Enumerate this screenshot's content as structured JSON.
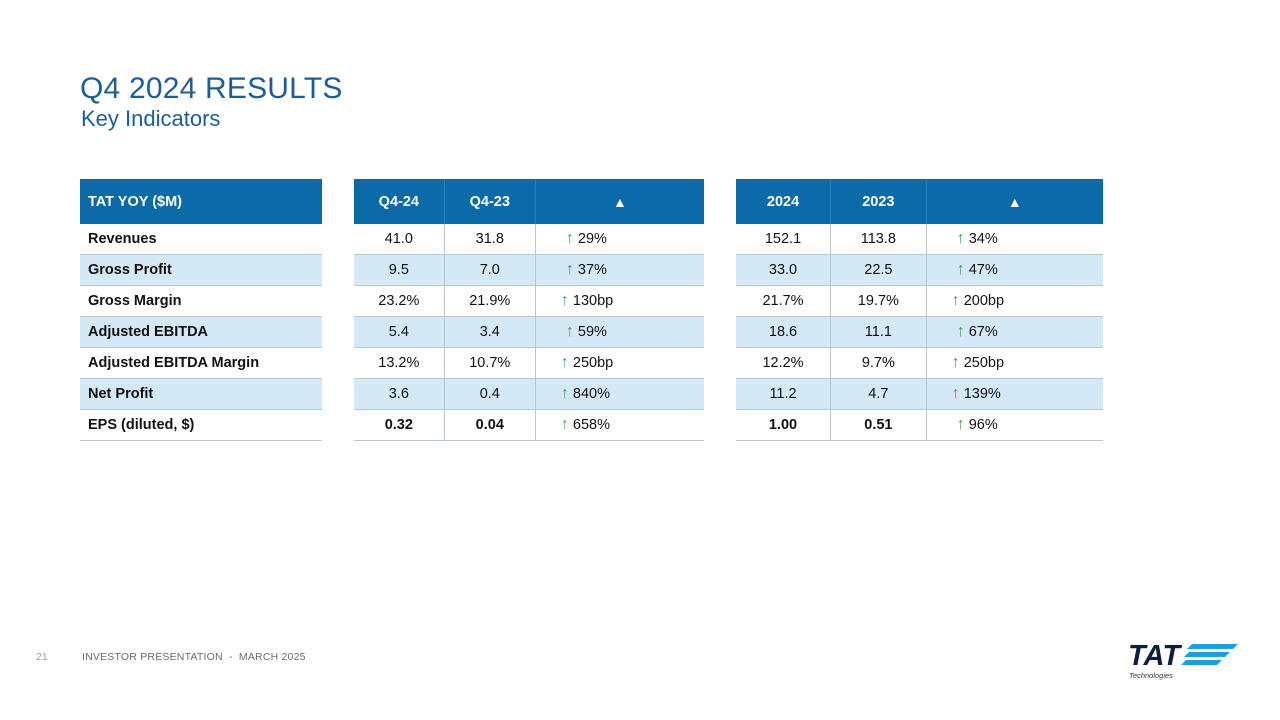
{
  "header": {
    "title": "Q4 2024 RESULTS",
    "subtitle": "Key Indicators"
  },
  "table": {
    "label_header": "TAT YOY ($M)",
    "quarter_headers": [
      "Q4-24",
      "Q4-23",
      "▲"
    ],
    "annual_headers": [
      "2024",
      "2023",
      "▲"
    ],
    "rows": [
      {
        "label": "Revenues",
        "q4_24": "41.0",
        "q4_23": "31.8",
        "q_change": "29%",
        "y2024": "152.1",
        "y2023": "113.8",
        "y_change": "34%"
      },
      {
        "label": "Gross Profit",
        "q4_24": "9.5",
        "q4_23": "7.0",
        "q_change": "37%",
        "y2024": "33.0",
        "y2023": "22.5",
        "y_change": "47%"
      },
      {
        "label": "Gross Margin",
        "q4_24": "23.2%",
        "q4_23": "21.9%",
        "q_change": "130bp",
        "y2024": "21.7%",
        "y2023": "19.7%",
        "y_change": "200bp"
      },
      {
        "label": "Adjusted EBITDA",
        "q4_24": "5.4",
        "q4_23": "3.4",
        "q_change": "59%",
        "y2024": "18.6",
        "y2023": "11.1",
        "y_change": "67%"
      },
      {
        "label": "Adjusted EBITDA Margin",
        "q4_24": "13.2%",
        "q4_23": "10.7%",
        "q_change": "250bp",
        "y2024": "12.2%",
        "y2023": "9.7%",
        "y_change": "250bp"
      },
      {
        "label": "Net Profit",
        "q4_24": "3.6",
        "q4_23": "0.4",
        "q_change": "840%",
        "y2024": "11.2",
        "y2023": "4.7",
        "y_change": "139%"
      },
      {
        "label": "EPS (diluted, $)",
        "q4_24": "0.32",
        "q4_23": "0.04",
        "q_change": "658%",
        "y2024": "1.00",
        "y2023": "0.51",
        "y_change": "96%"
      }
    ],
    "change_icon": "arrow-up-icon",
    "colors": {
      "header_bg": "#0d6aa8",
      "alt_row_bg": "#d5e8f6",
      "arrow": "#3aa24a",
      "title": "#1d5d97"
    }
  },
  "footer": {
    "page_number": "21",
    "text": "INVESTOR PRESENTATION  -  MARCH 2025"
  },
  "logo": {
    "brand": "TAT",
    "tagline": "Technologies"
  }
}
